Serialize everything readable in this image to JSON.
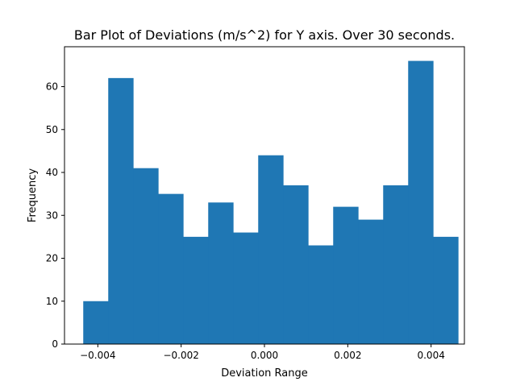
{
  "chart_data": {
    "type": "bar",
    "title": "Bar Plot of Deviations (m/s^2) for Y axis. Over 30 seconds.",
    "xlabel": "Deviation Range",
    "ylabel": "Frequency",
    "xlim": [
      -0.0048,
      0.0048
    ],
    "ylim": [
      0,
      69.3
    ],
    "bar_color": "#1f77b4",
    "grid": false,
    "bins": [
      {
        "x0": -0.00435,
        "x1": -0.00375,
        "value": 10
      },
      {
        "x0": -0.00375,
        "x1": -0.00315,
        "value": 62
      },
      {
        "x0": -0.00315,
        "x1": -0.00255,
        "value": 41
      },
      {
        "x0": -0.00255,
        "x1": -0.00195,
        "value": 35
      },
      {
        "x0": -0.00195,
        "x1": -0.00135,
        "value": 25
      },
      {
        "x0": -0.00135,
        "x1": -0.00075,
        "value": 33
      },
      {
        "x0": -0.00075,
        "x1": -0.00015,
        "value": 26
      },
      {
        "x0": -0.00015,
        "x1": 0.00045,
        "value": 44
      },
      {
        "x0": 0.00045,
        "x1": 0.00105,
        "value": 37
      },
      {
        "x0": 0.00105,
        "x1": 0.00165,
        "value": 23
      },
      {
        "x0": 0.00165,
        "x1": 0.00225,
        "value": 32
      },
      {
        "x0": 0.00225,
        "x1": 0.00285,
        "value": 29
      },
      {
        "x0": 0.00285,
        "x1": 0.00345,
        "value": 37
      },
      {
        "x0": 0.00345,
        "x1": 0.00405,
        "value": 66
      },
      {
        "x0": 0.00405,
        "x1": 0.00465,
        "value": 25
      }
    ],
    "x_ticks": [
      {
        "value": -0.004,
        "label": "−0.004"
      },
      {
        "value": -0.002,
        "label": "−0.002"
      },
      {
        "value": 0.0,
        "label": "0.000"
      },
      {
        "value": 0.002,
        "label": "0.002"
      },
      {
        "value": 0.004,
        "label": "0.004"
      }
    ],
    "y_ticks": [
      {
        "value": 0,
        "label": "0"
      },
      {
        "value": 10,
        "label": "10"
      },
      {
        "value": 20,
        "label": "20"
      },
      {
        "value": 30,
        "label": "30"
      },
      {
        "value": 40,
        "label": "40"
      },
      {
        "value": 50,
        "label": "50"
      },
      {
        "value": 60,
        "label": "60"
      }
    ]
  }
}
